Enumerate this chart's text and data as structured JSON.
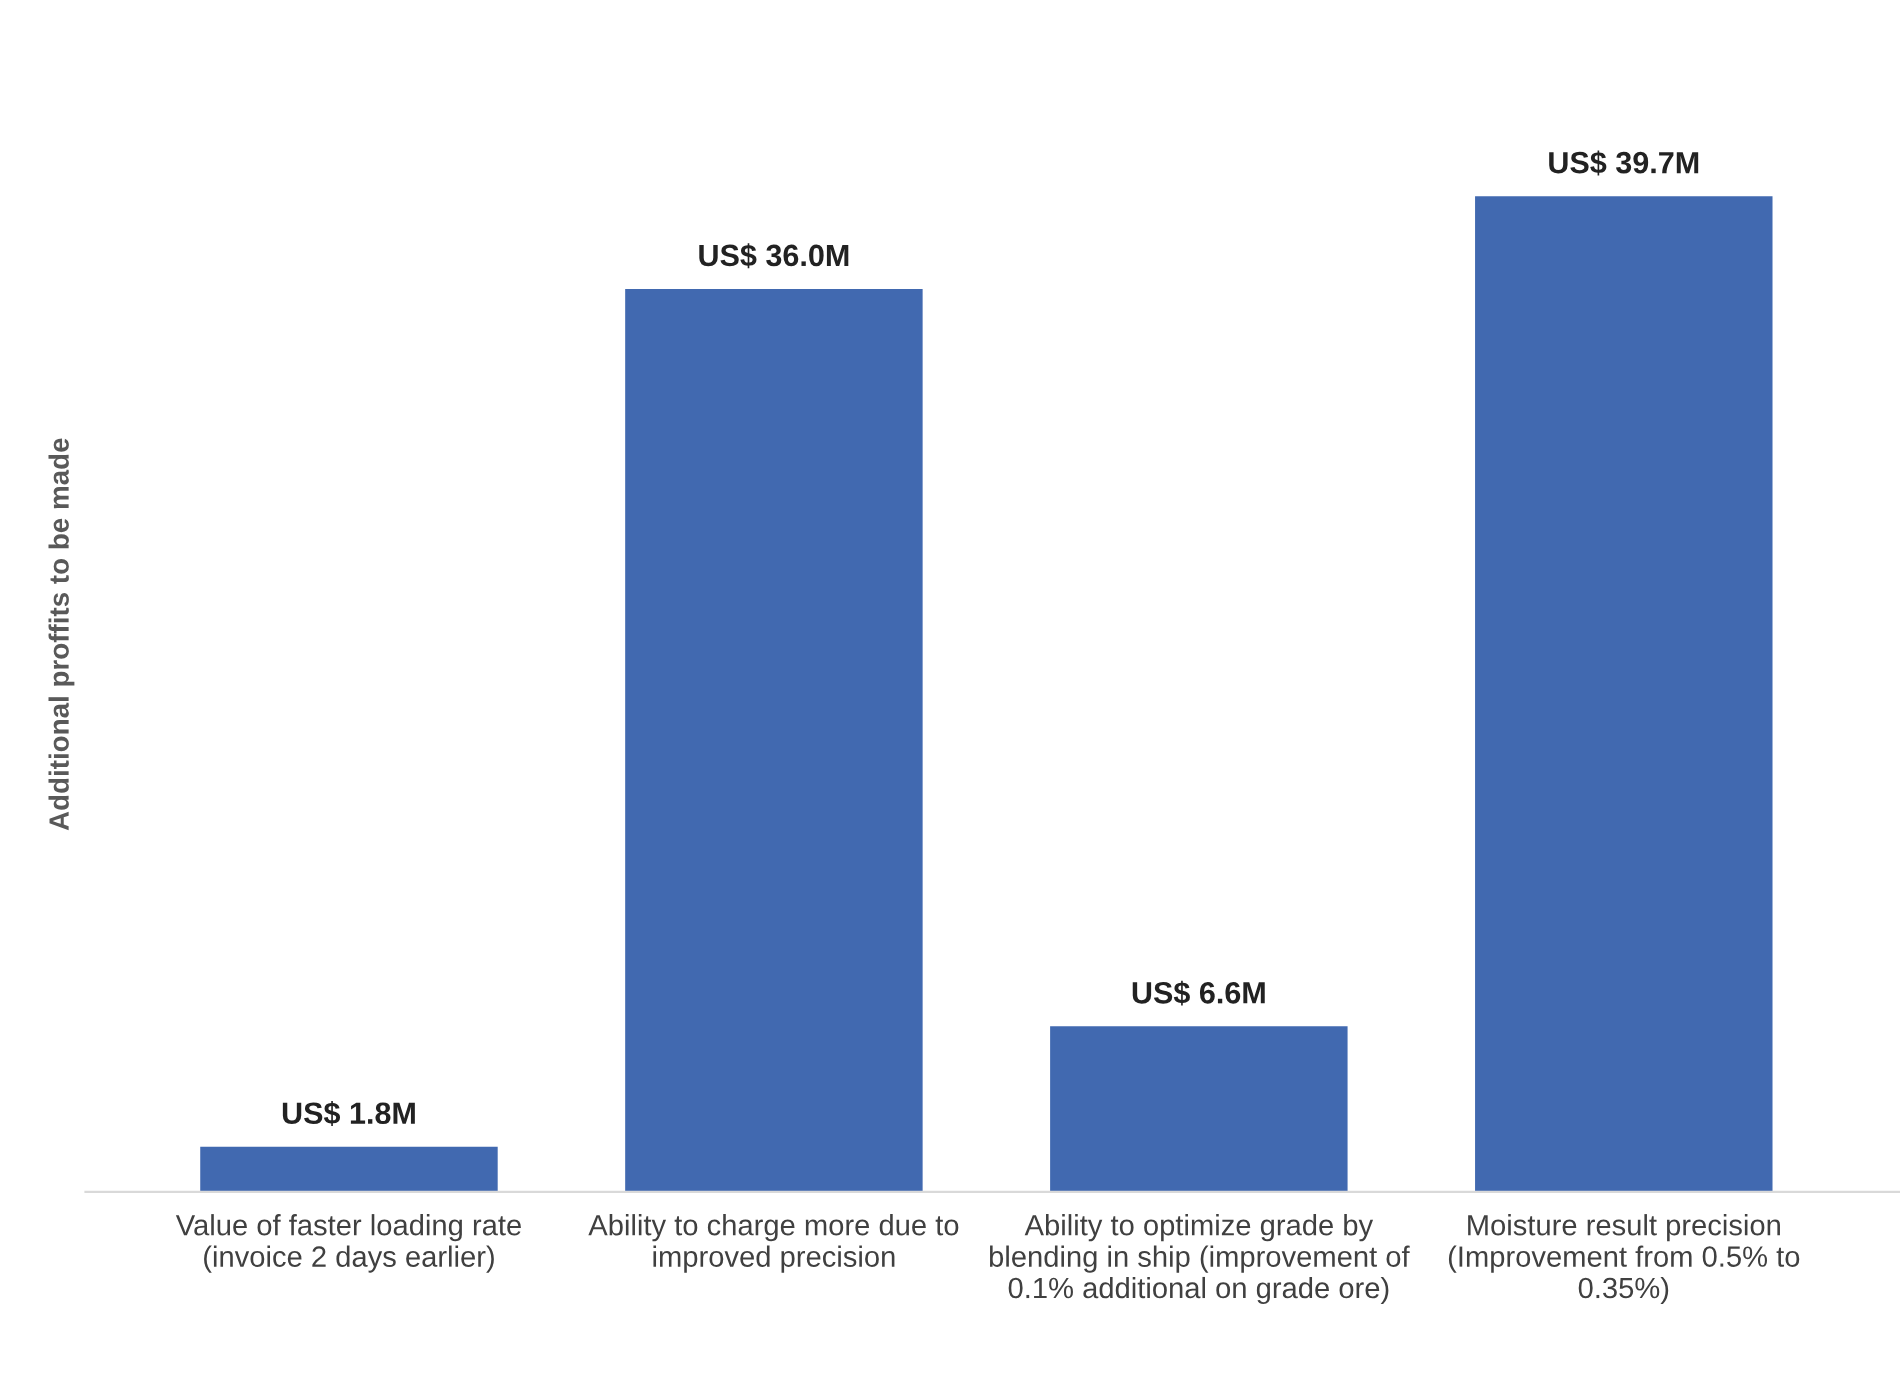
{
  "chart_data": {
    "type": "bar",
    "ylabel": "Additional proffits to be made",
    "categories": [
      "Value of faster loading rate\n(invoice 2 days earlier)",
      "Ability to charge more due to\nimproved precision",
      "Ability to optimize grade by\nblending in ship (improvement of\n0.1% additional on grade ore)",
      "Moisture result precision\n(Improvement from 0.5% to\n0.35%)"
    ],
    "values": [
      1800000,
      36000000,
      6600000,
      39700000
    ],
    "value_labels": [
      "US$ 1.8M",
      "US$ 36.0M",
      "US$ 6.6M",
      "US$ 39.7M"
    ],
    "color": "#4169b0",
    "grid": false,
    "legend": false
  }
}
